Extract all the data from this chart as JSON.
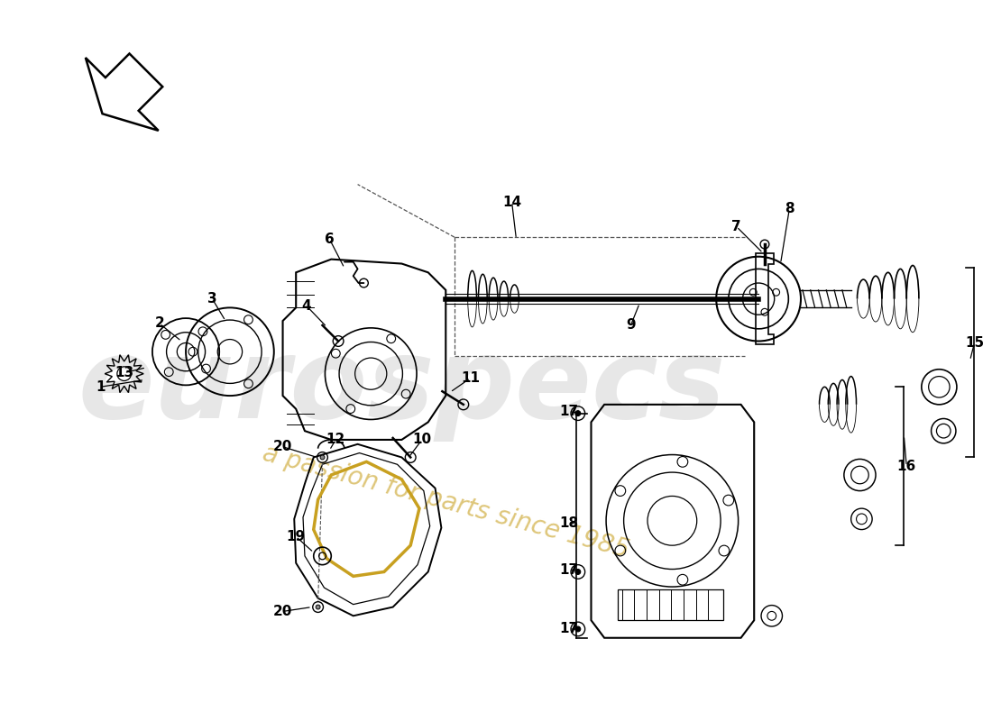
{
  "bg_color": "#ffffff",
  "watermark1": "eurospecs",
  "watermark2": "a passion for parts since 1985",
  "lc": "#000000",
  "dc": "#555555",
  "wm1_color": "#c0c0c0",
  "wm2_color": "#c8a832",
  "figw": 11.0,
  "figh": 8.0,
  "dpi": 100
}
